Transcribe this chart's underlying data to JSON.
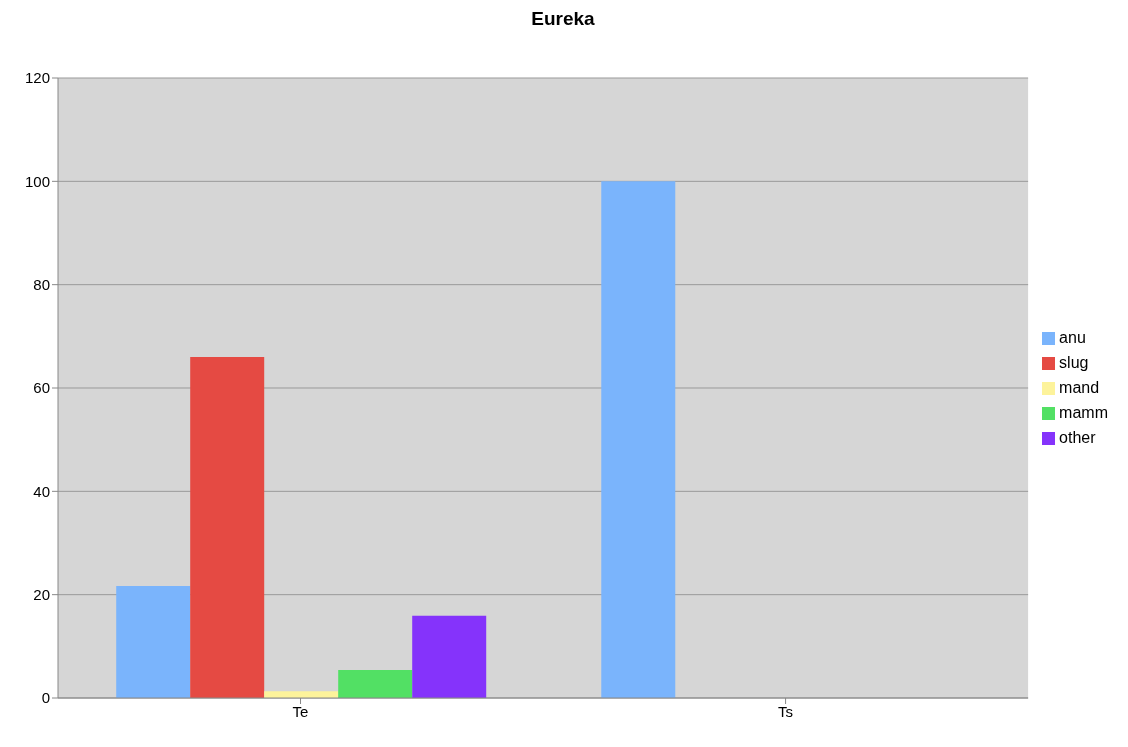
{
  "chart_data": {
    "type": "bar",
    "title": "Eureka",
    "categories": [
      "Te",
      "Ts"
    ],
    "series": [
      {
        "name": "anu",
        "color": "#7ab4fc",
        "values": [
          21.7,
          100
        ]
      },
      {
        "name": "slug",
        "color": "#e54a43",
        "values": [
          66,
          0
        ]
      },
      {
        "name": "mand",
        "color": "#fdf39b",
        "values": [
          1.3,
          0
        ]
      },
      {
        "name": "mamm",
        "color": "#52e064",
        "values": [
          5.4,
          0
        ]
      },
      {
        "name": "other",
        "color": "#8533fb",
        "values": [
          15.9,
          0
        ]
      }
    ],
    "ylim": [
      0,
      120
    ],
    "yticks": [
      0,
      20,
      40,
      60,
      80,
      100,
      120
    ],
    "grid": "y",
    "legend": "right"
  }
}
